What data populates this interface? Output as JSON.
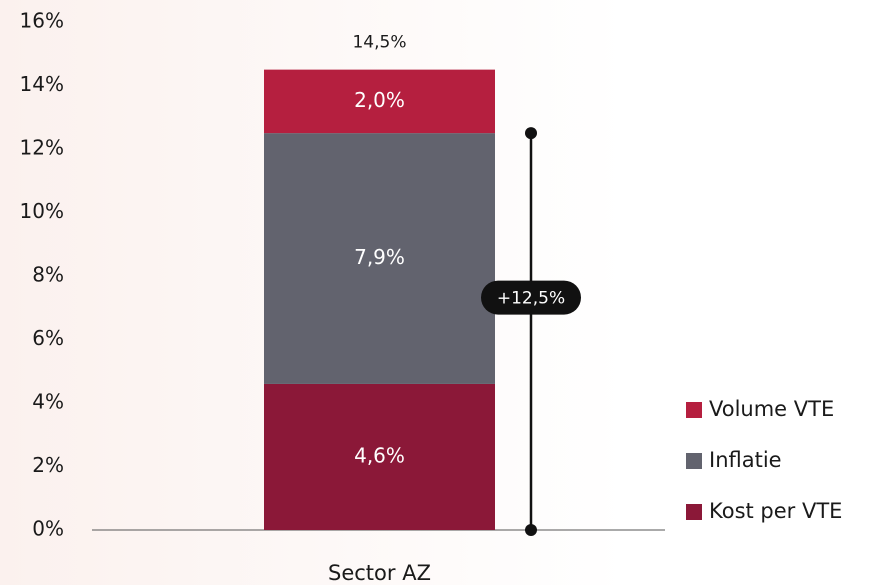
{
  "chart_data": {
    "type": "stacked_bar",
    "categories": [
      "Sector AZ"
    ],
    "series": [
      {
        "name": "Kost per VTE",
        "color": "#8b1838",
        "values": [
          4.6
        ],
        "value_labels": [
          "4,6%"
        ]
      },
      {
        "name": "Inflatie",
        "color": "#62636e",
        "values": [
          7.9
        ],
        "value_labels": [
          "7,9%"
        ]
      },
      {
        "name": "Volume VTE",
        "color": "#b51f3f",
        "values": [
          2.0
        ],
        "value_labels": [
          "2,0%"
        ]
      }
    ],
    "ylim": [
      0,
      16
    ],
    "yticks": [
      {
        "value": 0,
        "label": "0%"
      },
      {
        "value": 2,
        "label": "2%"
      },
      {
        "value": 4,
        "label": "4%"
      },
      {
        "value": 6,
        "label": "6%"
      },
      {
        "value": 8,
        "label": "8%"
      },
      {
        "value": 10,
        "label": "10%"
      },
      {
        "value": 12,
        "label": "12%"
      },
      {
        "value": 14,
        "label": "14%"
      },
      {
        "value": 16,
        "label": "16%"
      }
    ],
    "total_label": {
      "value": 14.5,
      "label": "14,5%"
    },
    "bracket": {
      "from": 0,
      "to": 12.5,
      "label": "+12,5%"
    },
    "legend": "right"
  }
}
